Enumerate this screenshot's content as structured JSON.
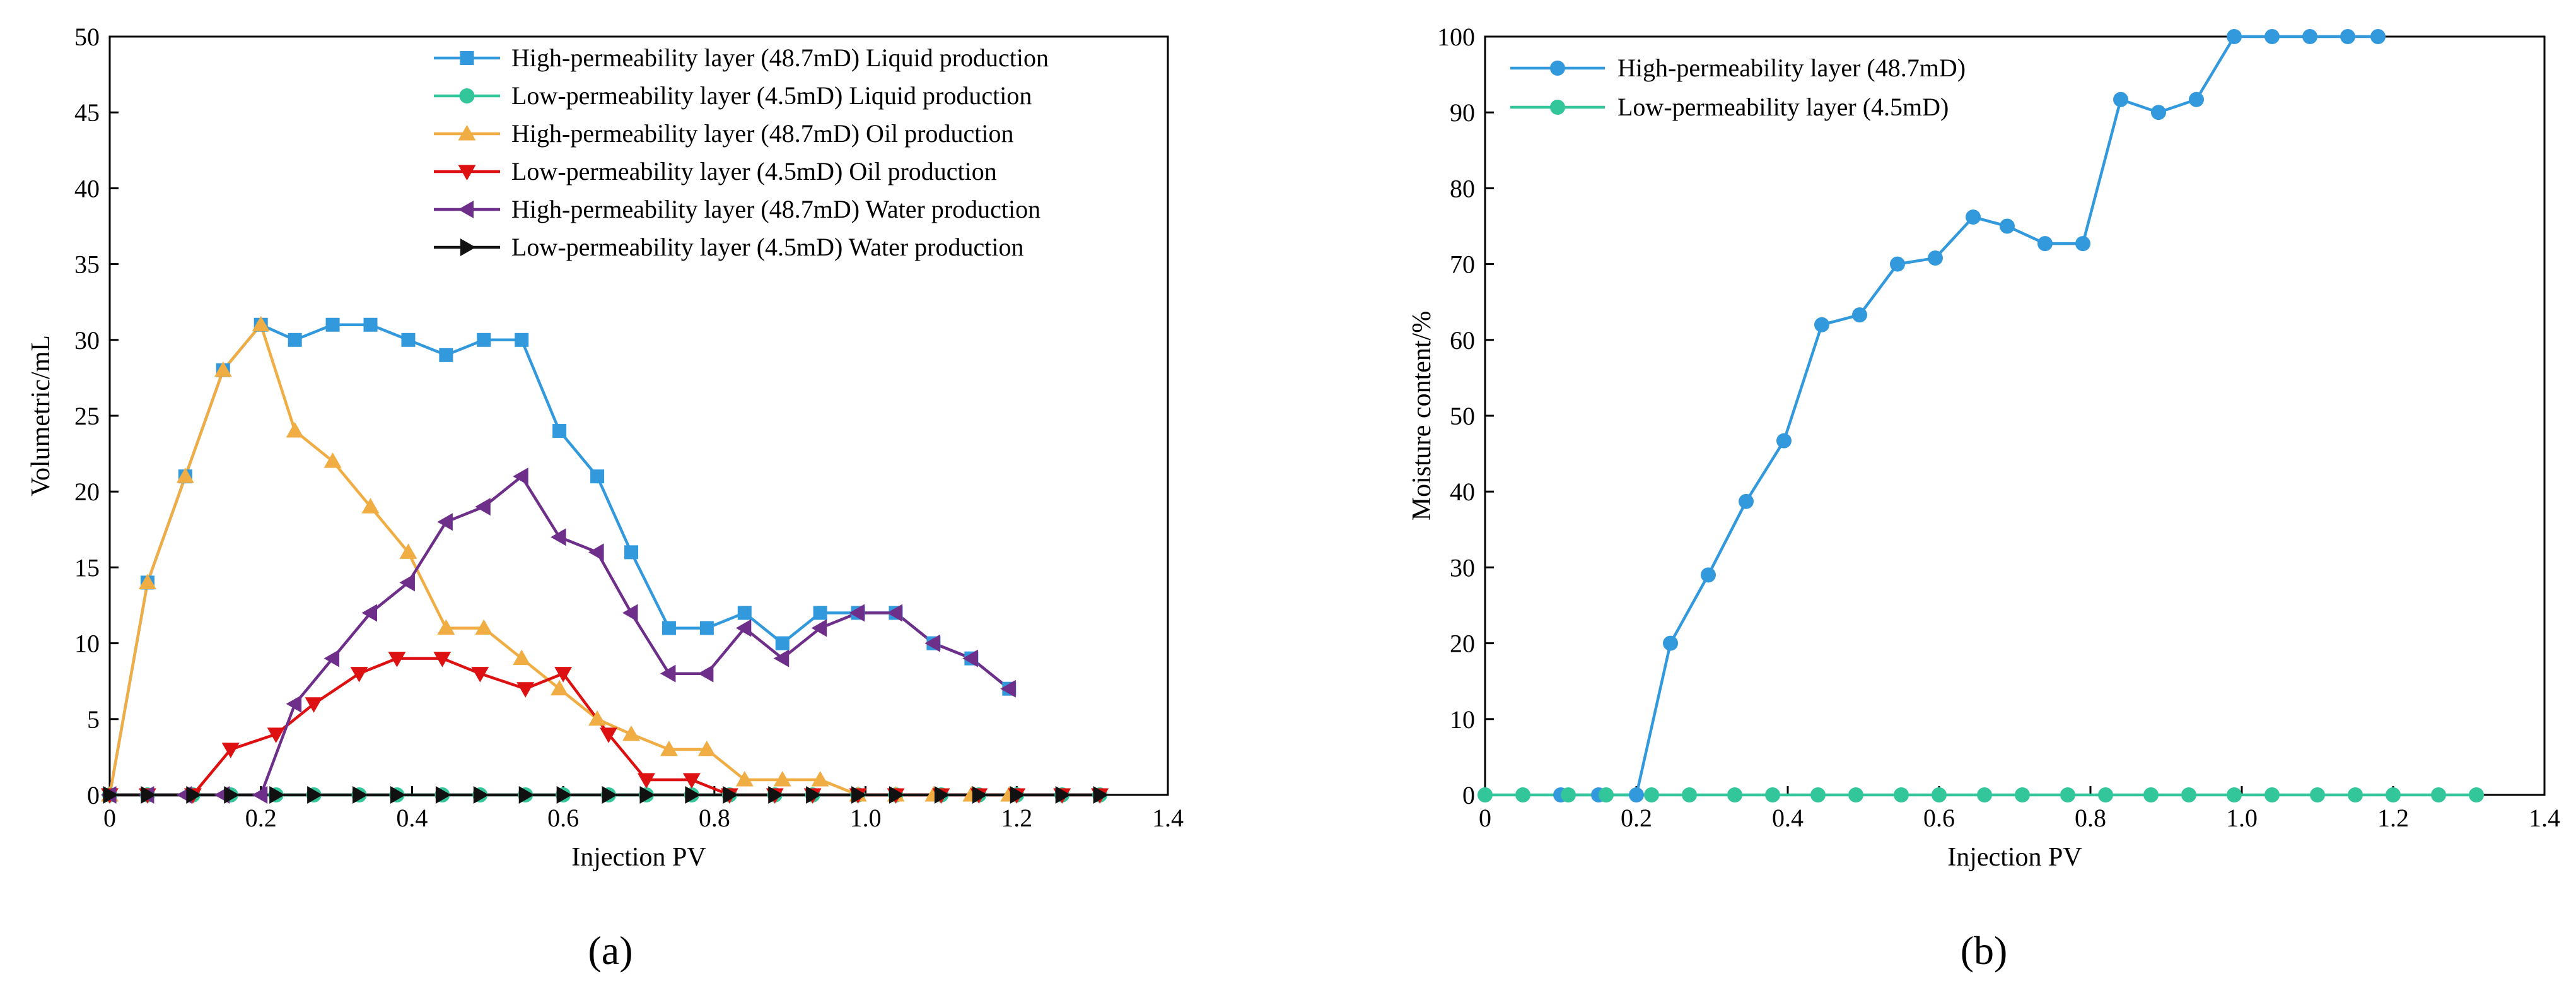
{
  "chart_data": [
    {
      "type": "line",
      "panel_label": "(a)",
      "xlabel": "Injection PV",
      "ylabel": "Volumetric/mL",
      "xlim": [
        0,
        1.4
      ],
      "ylim": [
        0,
        50
      ],
      "xticks": [
        0,
        0.2,
        0.4,
        0.6,
        0.8,
        1.0,
        1.2,
        1.4
      ],
      "xtick_labels": [
        "0",
        "0.2",
        "0.4",
        "0.6",
        "0.8",
        "1.0",
        "1.2",
        "1.4"
      ],
      "yticks": [
        0,
        5,
        10,
        15,
        20,
        25,
        30,
        35,
        40,
        45,
        50
      ],
      "ytick_labels": [
        "0",
        "5",
        "10",
        "15",
        "20",
        "25",
        "30",
        "35",
        "40",
        "45",
        "50"
      ],
      "legend_position": "top-right",
      "series": [
        {
          "name": "High-permeability layer (48.7mD) Liquid production",
          "color": "#3399dd",
          "marker": "square",
          "x": [
            0,
            0.05,
            0.1,
            0.15,
            0.2,
            0.245,
            0.295,
            0.345,
            0.395,
            0.445,
            0.495,
            0.545,
            0.595,
            0.645,
            0.69,
            0.74,
            0.79,
            0.84,
            0.89,
            0.94,
            0.99,
            1.04,
            1.09,
            1.14,
            1.19
          ],
          "y": [
            0,
            14,
            21,
            28,
            31,
            30,
            31,
            31,
            30,
            29,
            30,
            30,
            24,
            21,
            16,
            11,
            11,
            12,
            10,
            12,
            12,
            12,
            10,
            9,
            7
          ]
        },
        {
          "name": "Low-permeability layer (4.5mD) Liquid production",
          "color": "#33c69a",
          "marker": "circle",
          "x": [
            0,
            0.05,
            0.11,
            0.16,
            0.22,
            0.27,
            0.33,
            0.38,
            0.44,
            0.49,
            0.55,
            0.6,
            0.66,
            0.71,
            0.77,
            0.82,
            0.88,
            0.93,
            0.99,
            1.04,
            1.1,
            1.15,
            1.2,
            1.26,
            1.31
          ],
          "y": [
            0,
            0,
            0,
            0,
            0,
            0,
            0,
            0,
            0,
            0,
            0,
            0,
            0,
            0,
            0,
            0,
            0,
            0,
            0,
            0,
            0,
            0,
            0,
            0,
            0
          ]
        },
        {
          "name": "High-permeability layer (48.7mD) Oil production",
          "color": "#f0ad44",
          "marker": "triangle-up",
          "x": [
            0,
            0.05,
            0.1,
            0.15,
            0.2,
            0.245,
            0.295,
            0.345,
            0.395,
            0.445,
            0.495,
            0.545,
            0.595,
            0.645,
            0.69,
            0.74,
            0.79,
            0.84,
            0.89,
            0.94,
            0.99,
            1.04,
            1.09,
            1.14,
            1.19
          ],
          "y": [
            0,
            14,
            21,
            28,
            31,
            24,
            22,
            19,
            16,
            11,
            11,
            9,
            7,
            5,
            4,
            3,
            3,
            1,
            1,
            1,
            0,
            0,
            0,
            0,
            0
          ]
        },
        {
          "name": "Low-permeability layer (4.5mD) Oil production",
          "color": "#dd1111",
          "marker": "triangle-down",
          "x": [
            0,
            0.05,
            0.11,
            0.16,
            0.22,
            0.27,
            0.33,
            0.38,
            0.44,
            0.49,
            0.55,
            0.6,
            0.66,
            0.71,
            0.77,
            0.82,
            0.88,
            0.93,
            0.99,
            1.04,
            1.1,
            1.15,
            1.2,
            1.26,
            1.31
          ],
          "y": [
            0,
            0,
            0,
            3,
            4,
            6,
            8,
            9,
            9,
            8,
            7,
            8,
            4,
            1,
            1,
            0,
            0,
            0,
            0,
            0,
            0,
            0,
            0,
            0,
            0
          ]
        },
        {
          "name": "High-permeability layer (48.7mD) Water production",
          "color": "#6e2f8a",
          "marker": "triangle-left",
          "x": [
            0,
            0.05,
            0.1,
            0.15,
            0.2,
            0.245,
            0.295,
            0.345,
            0.395,
            0.445,
            0.495,
            0.545,
            0.595,
            0.645,
            0.69,
            0.74,
            0.79,
            0.84,
            0.89,
            0.94,
            0.99,
            1.04,
            1.09,
            1.14,
            1.19
          ],
          "y": [
            0,
            0,
            0,
            0,
            0,
            6,
            9,
            12,
            14,
            18,
            19,
            21,
            17,
            16,
            12,
            8,
            8,
            11,
            9,
            11,
            12,
            12,
            10,
            9,
            7
          ]
        },
        {
          "name": "Low-permeability layer (4.5mD) Water production",
          "color": "#111111",
          "marker": "triangle-right",
          "x": [
            0,
            0.05,
            0.11,
            0.16,
            0.22,
            0.27,
            0.33,
            0.38,
            0.44,
            0.49,
            0.55,
            0.6,
            0.66,
            0.71,
            0.77,
            0.82,
            0.88,
            0.93,
            0.99,
            1.04,
            1.1,
            1.15,
            1.2,
            1.26,
            1.31
          ],
          "y": [
            0,
            0,
            0,
            0,
            0,
            0,
            0,
            0,
            0,
            0,
            0,
            0,
            0,
            0,
            0,
            0,
            0,
            0,
            0,
            0,
            0,
            0,
            0,
            0,
            0
          ]
        }
      ]
    },
    {
      "type": "line",
      "panel_label": "(b)",
      "xlabel": "Injection PV",
      "ylabel": "Moisture content/%",
      "xlim": [
        0,
        1.4
      ],
      "ylim": [
        0,
        100
      ],
      "xticks": [
        0,
        0.2,
        0.4,
        0.6,
        0.8,
        1.0,
        1.2,
        1.4
      ],
      "xtick_labels": [
        "0",
        "0.2",
        "0.4",
        "0.6",
        "0.8",
        "1.0",
        "1.2",
        "1.4"
      ],
      "yticks": [
        0,
        10,
        20,
        30,
        40,
        50,
        60,
        70,
        80,
        90,
        100
      ],
      "ytick_labels": [
        "0",
        "10",
        "20",
        "30",
        "40",
        "50",
        "60",
        "70",
        "80",
        "90",
        "100"
      ],
      "legend_position": "top-left",
      "series": [
        {
          "name": "High-permeability layer (48.7mD)",
          "color": "#3399dd",
          "marker": "circle",
          "x": [
            0.1,
            0.15,
            0.2,
            0.245,
            0.295,
            0.345,
            0.395,
            0.445,
            0.495,
            0.545,
            0.595,
            0.645,
            0.69,
            0.74,
            0.79,
            0.84,
            0.89,
            0.94,
            0.99,
            1.04,
            1.09,
            1.14,
            1.18
          ],
          "y": [
            0,
            0,
            0,
            20,
            29,
            38.7,
            46.7,
            62,
            63.3,
            70,
            70.8,
            76.2,
            75,
            72.7,
            72.7,
            91.7,
            90,
            91.7,
            100,
            100,
            100,
            100,
            100
          ]
        },
        {
          "name": "Low-permeability layer (4.5mD)",
          "color": "#33c69a",
          "marker": "circle",
          "x": [
            0,
            0.05,
            0.11,
            0.16,
            0.22,
            0.27,
            0.33,
            0.38,
            0.44,
            0.49,
            0.55,
            0.6,
            0.66,
            0.71,
            0.77,
            0.82,
            0.88,
            0.93,
            0.99,
            1.04,
            1.1,
            1.15,
            1.2,
            1.26,
            1.31
          ],
          "y": [
            0,
            0,
            0,
            0,
            0,
            0,
            0,
            0,
            0,
            0,
            0,
            0,
            0,
            0,
            0,
            0,
            0,
            0,
            0,
            0,
            0,
            0,
            0,
            0,
            0
          ]
        }
      ]
    }
  ]
}
